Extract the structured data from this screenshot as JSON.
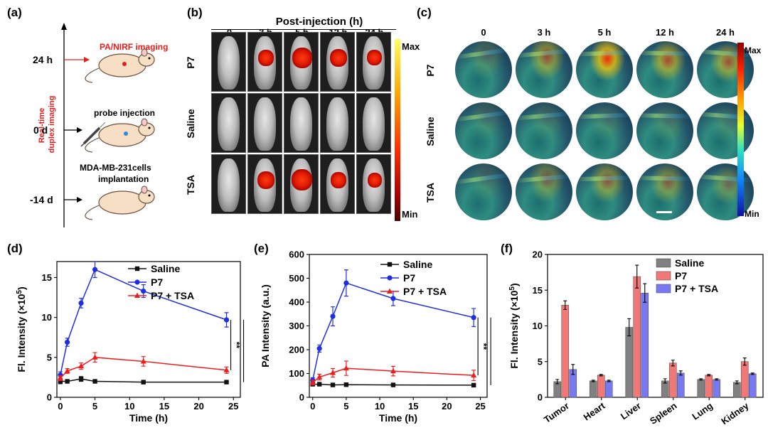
{
  "panels": {
    "a": {
      "label": "(a)",
      "axis_label_lines": [
        "Real-time",
        "duplex imaging"
      ],
      "timeline": [
        {
          "time": "24 h",
          "text": "PA/NIRF imaging",
          "highlight": true,
          "dot": "#e02020"
        },
        {
          "time": "0 d",
          "text": "probe injection",
          "highlight": false,
          "dot": "#2a8be0"
        },
        {
          "time": "-14 d",
          "text_lines": [
            "MDA-MB-231cells",
            "implantation"
          ],
          "highlight": false,
          "dot": ""
        }
      ],
      "colors": {
        "highlight": "#e61e1e"
      }
    },
    "b": {
      "label": "(b)",
      "header": "Post-injection (h)",
      "columns": [
        "0",
        "3 h",
        "5 h",
        "12 h",
        "24 h"
      ],
      "rows": [
        "P7",
        "Saline",
        "TSA"
      ],
      "colorbar": {
        "max": "Max",
        "min": "Min"
      }
    },
    "c": {
      "label": "(c)",
      "columns": [
        "0",
        "3 h",
        "5 h",
        "12 h",
        "24 h"
      ],
      "rows": [
        "P7",
        "Saline",
        "TSA"
      ],
      "colorbar": {
        "max": "Max",
        "min": "Min"
      }
    },
    "d": {
      "label": "(d)"
    },
    "e": {
      "label": "(e)"
    },
    "f": {
      "label": "(f)"
    }
  },
  "chart_data": [
    {
      "id": "d",
      "type": "line",
      "xlabel": "Time (h)",
      "ylabel": "Fl. Intensity (×10",
      "ylabel_sup": "5",
      "ylabel_end": ")",
      "xlim": [
        -0.5,
        26
      ],
      "ylim": [
        0,
        17
      ],
      "xticks": [
        0,
        5,
        10,
        15,
        20,
        25
      ],
      "yticks": [
        0,
        5,
        10,
        15
      ],
      "x": [
        0,
        1,
        3,
        5,
        12,
        24
      ],
      "series": [
        {
          "name": "Saline",
          "color": "#111111",
          "marker": "square",
          "values": [
            2.0,
            2.0,
            2.3,
            2.0,
            1.9,
            1.9
          ],
          "errors": [
            0.3,
            0.2,
            0.3,
            0.2,
            0.1,
            0.1
          ]
        },
        {
          "name": "P7",
          "color": "#1f2fe0",
          "marker": "circle",
          "values": [
            2.8,
            6.9,
            11.8,
            16.0,
            13.3,
            9.7
          ],
          "errors": [
            0.4,
            0.5,
            0.6,
            1.0,
            0.8,
            0.9
          ]
        },
        {
          "name": "P7 + TSA",
          "color": "#ee1c1c",
          "marker": "triangle",
          "values": [
            2.4,
            3.3,
            3.9,
            5.0,
            4.5,
            3.4
          ],
          "errors": [
            0.3,
            0.3,
            0.4,
            0.6,
            0.6,
            0.4
          ]
        }
      ],
      "significance": [
        "**",
        "***"
      ],
      "legend": "top-right"
    },
    {
      "id": "e",
      "type": "line",
      "xlabel": "Time (h)",
      "ylabel": "PA Intensity (a.u.)",
      "xlim": [
        -0.5,
        26
      ],
      "ylim": [
        0,
        600
      ],
      "xticks": [
        0,
        5,
        10,
        15,
        20,
        25
      ],
      "yticks": [
        0,
        100,
        200,
        300,
        400,
        500,
        600
      ],
      "x": [
        0,
        1,
        3,
        5,
        12,
        24
      ],
      "series": [
        {
          "name": "Saline",
          "color": "#111111",
          "marker": "square",
          "values": [
            55,
            55,
            52,
            53,
            52,
            51
          ],
          "errors": [
            5,
            4,
            4,
            4,
            3,
            3
          ]
        },
        {
          "name": "P7",
          "color": "#1f2fe0",
          "marker": "circle",
          "values": [
            72,
            205,
            340,
            480,
            415,
            335
          ],
          "errors": [
            10,
            15,
            40,
            55,
            30,
            38
          ]
        },
        {
          "name": "P7 + TSA",
          "color": "#ee1c1c",
          "marker": "triangle",
          "values": [
            62,
            85,
            103,
            122,
            110,
            92
          ],
          "errors": [
            10,
            12,
            18,
            30,
            20,
            22
          ]
        }
      ],
      "significance": [
        "**",
        "***"
      ],
      "legend": "top-right"
    },
    {
      "id": "f",
      "type": "bar",
      "ylabel": "Fl. Intensity (×10",
      "ylabel_sup": "5",
      "ylabel_end": ")",
      "categories": [
        "Tumor",
        "Heart",
        "Liver",
        "Spleen",
        "Lung",
        "Kidney"
      ],
      "ylim": [
        0,
        20
      ],
      "yticks": [
        0,
        5,
        10,
        15,
        20
      ],
      "series": [
        {
          "name": "Saline",
          "color": "#808080",
          "values": [
            2.2,
            2.3,
            9.8,
            2.3,
            2.5,
            2.1
          ],
          "errors": [
            0.3,
            0.1,
            1.2,
            0.3,
            0.1,
            0.2
          ]
        },
        {
          "name": "P7",
          "color": "#f27777",
          "values": [
            12.9,
            3.1,
            16.9,
            4.8,
            3.1,
            5.0
          ],
          "errors": [
            0.6,
            0.1,
            1.6,
            0.4,
            0.1,
            0.5
          ]
        },
        {
          "name": "P7 + TSA",
          "color": "#7878f0",
          "values": [
            3.9,
            2.3,
            14.6,
            3.4,
            2.5,
            3.3
          ],
          "errors": [
            0.7,
            0.1,
            1.3,
            0.3,
            0.1,
            0.1
          ]
        }
      ],
      "legend": "top-right"
    }
  ]
}
